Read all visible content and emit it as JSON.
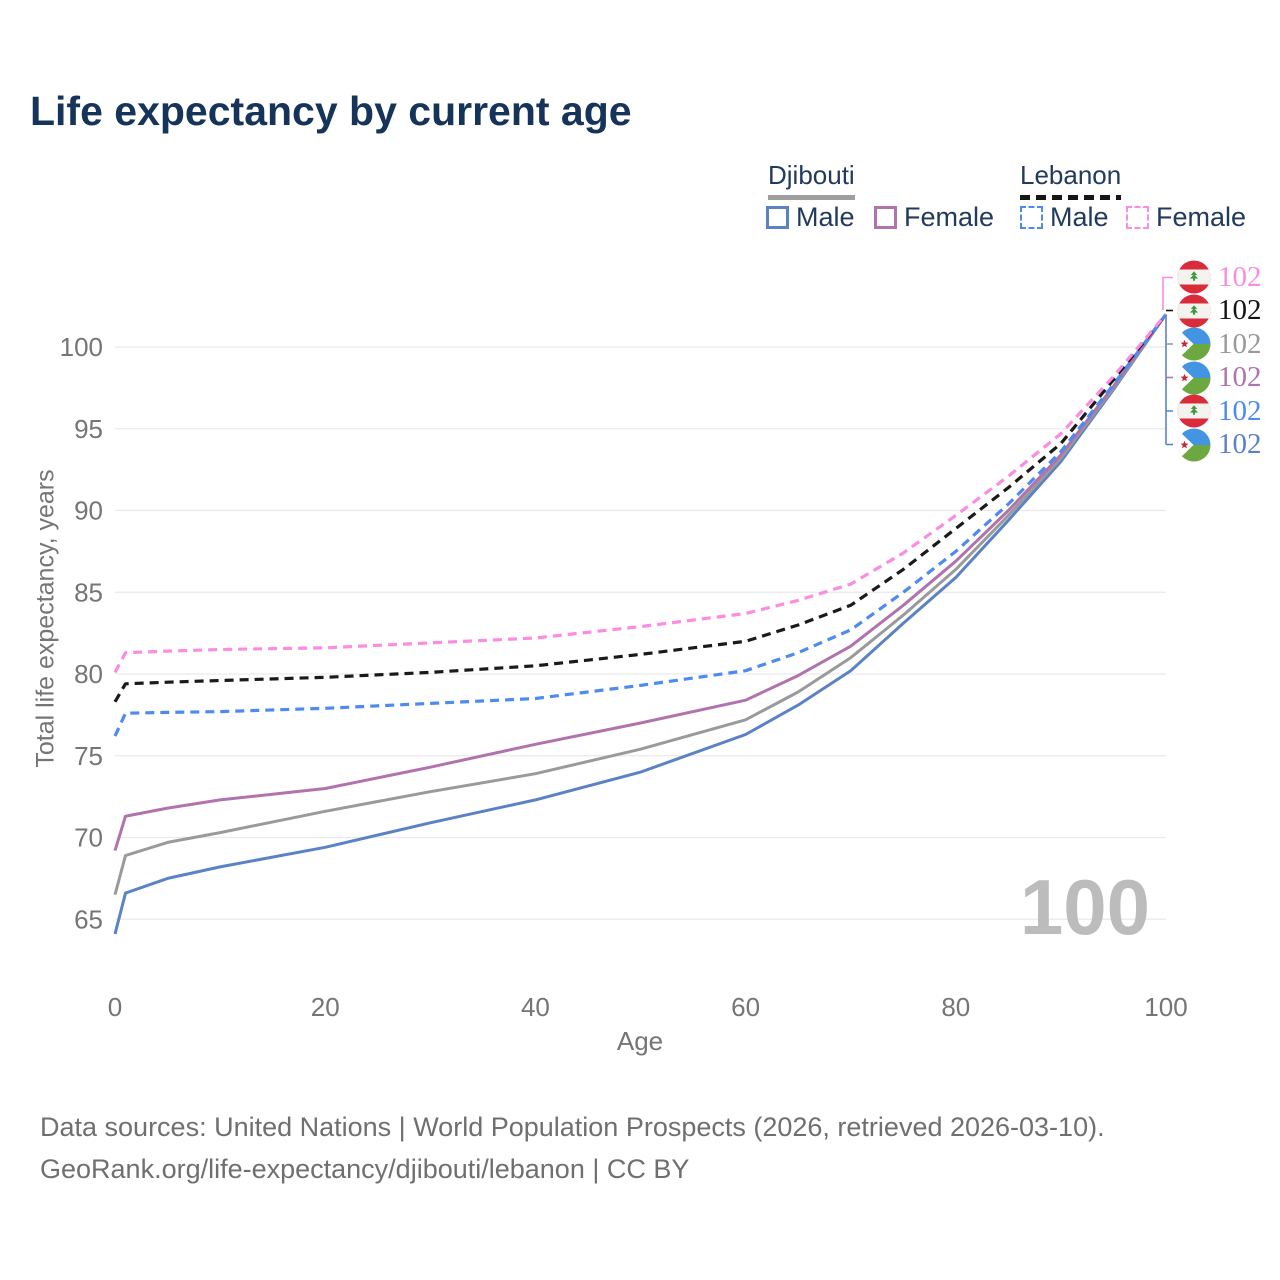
{
  "title": "Life expectancy by current age",
  "watermark": "100",
  "legend": {
    "groups": [
      {
        "label": "Djibouti",
        "line_style": "solid",
        "underline_color": "#9e9e9e",
        "items": [
          {
            "label": "Male",
            "series": "djibouti_male"
          },
          {
            "label": "Female",
            "series": "djibouti_female"
          }
        ]
      },
      {
        "label": "Lebanon",
        "line_style": "dashed",
        "underline_color": "#161616",
        "items": [
          {
            "label": "Male",
            "series": "lebanon_male"
          },
          {
            "label": "Female",
            "series": "lebanon_female"
          }
        ]
      }
    ]
  },
  "chart_data": {
    "type": "line",
    "title": "Life expectancy by current age",
    "xlabel": "Age",
    "ylabel": "Total life expectancy, years",
    "xlim": [
      0,
      100
    ],
    "ylim": [
      63,
      103
    ],
    "xticks": [
      0,
      20,
      40,
      60,
      80,
      100
    ],
    "yticks": [
      65,
      70,
      75,
      80,
      85,
      90,
      95,
      100
    ],
    "grid": "horizontal",
    "legend_position": "top-right",
    "x": [
      0,
      1,
      5,
      10,
      20,
      30,
      40,
      50,
      60,
      65,
      70,
      75,
      80,
      85,
      90,
      95,
      100
    ],
    "series": [
      {
        "name": "Djibouti Male",
        "key": "djibouti_male",
        "color": "#5b82c4",
        "dash": false,
        "values": [
          64.1,
          66.6,
          67.5,
          68.2,
          69.4,
          70.9,
          72.3,
          74.0,
          76.3,
          78.1,
          80.2,
          83.1,
          85.9,
          89.4,
          93.0,
          97.4,
          102
        ]
      },
      {
        "name": "Djibouti (both sexes)",
        "key": "djibouti_total",
        "color": "#9a9a9a",
        "dash": false,
        "values": [
          66.5,
          68.9,
          69.7,
          70.3,
          71.6,
          72.8,
          73.9,
          75.4,
          77.2,
          78.9,
          81.0,
          83.6,
          86.4,
          89.7,
          93.2,
          97.5,
          102
        ]
      },
      {
        "name": "Djibouti Female",
        "key": "djibouti_female",
        "color": "#b173ad",
        "dash": false,
        "values": [
          69.2,
          71.3,
          71.8,
          72.3,
          73.0,
          74.3,
          75.7,
          77.0,
          78.4,
          79.9,
          81.7,
          84.2,
          86.9,
          90.0,
          93.4,
          97.6,
          102
        ]
      },
      {
        "name": "Lebanon Male",
        "key": "lebanon_male",
        "color": "#4d8bf0",
        "dash": true,
        "values": [
          76.2,
          77.6,
          77.65,
          77.7,
          77.9,
          78.2,
          78.5,
          79.3,
          80.2,
          81.3,
          82.7,
          85.0,
          87.5,
          90.4,
          93.6,
          97.7,
          102
        ]
      },
      {
        "name": "Lebanon (both sexes)",
        "key": "lebanon_total",
        "color": "#1a1a1a",
        "dash": true,
        "values": [
          78.3,
          79.4,
          79.5,
          79.6,
          79.8,
          80.1,
          80.5,
          81.2,
          82.0,
          83.0,
          84.2,
          86.4,
          88.9,
          91.4,
          94.1,
          98.0,
          102
        ]
      },
      {
        "name": "Lebanon Female",
        "key": "lebanon_female",
        "color": "#fb8ce1",
        "dash": true,
        "values": [
          80.1,
          81.3,
          81.4,
          81.5,
          81.6,
          81.9,
          82.2,
          82.9,
          83.7,
          84.5,
          85.5,
          87.4,
          89.7,
          92.1,
          94.7,
          98.2,
          102
        ]
      }
    ],
    "end_labels": [
      {
        "country": "lebanon",
        "value": "102",
        "color": "#fb8ce1",
        "series": "lebanon_female"
      },
      {
        "country": "lebanon",
        "value": "102",
        "color": "#141414",
        "series": "lebanon_total"
      },
      {
        "country": "djibouti",
        "value": "102",
        "color": "#9a9a9a",
        "series": "djibouti_total"
      },
      {
        "country": "djibouti",
        "value": "102",
        "color": "#b173ad",
        "series": "djibouti_female"
      },
      {
        "country": "lebanon",
        "value": "102",
        "color": "#4d8bf0",
        "series": "lebanon_male"
      },
      {
        "country": "djibouti",
        "value": "102",
        "color": "#5b82c4",
        "series": "djibouti_male"
      }
    ]
  },
  "footer": {
    "line1": "Data sources: United Nations | World Population Prospects (2026, retrieved 2026-03-10).",
    "line2": "GeoRank.org/life-expectancy/djibouti/lebanon | CC BY"
  }
}
